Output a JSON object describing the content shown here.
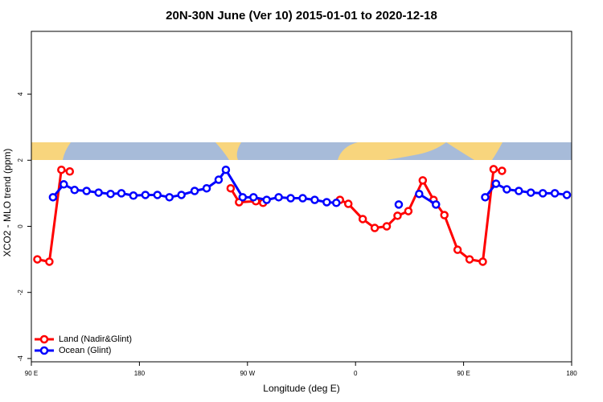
{
  "chart_data": {
    "type": "line",
    "title": "20N-30N June (Ver 10)   2015-01-01 to 2020-12-18",
    "x_label": "Longitude (deg E)",
    "y_label": "XCO2 - MLO trend (ppm)",
    "xlim": [
      90,
      540
    ],
    "ylim": [
      -4.1,
      5.9
    ],
    "xticks": [
      {
        "value": 90,
        "label": "90 E"
      },
      180,
      {
        "value": 270,
        "label": "90 W"
      },
      {
        "value": 360,
        "label": "0"
      },
      {
        "value": 450,
        "label": "90 E"
      },
      {
        "value": 540,
        "label": "180"
      }
    ],
    "yticks": [
      -4,
      -2,
      0,
      2,
      4
    ],
    "grid": false,
    "legend": "bottom-left",
    "series": [
      {
        "name": "Land (Nadir&Glint)",
        "color": "#ff0000",
        "x": [
          95,
          105,
          115,
          122,
          null,
          256,
          263,
          277,
          283,
          null,
          347,
          354,
          366,
          376,
          386,
          395,
          404,
          416,
          425,
          434,
          445,
          455,
          466,
          475,
          482
        ],
        "values": [
          -1.0,
          -1.07,
          1.71,
          1.66,
          null,
          1.15,
          0.73,
          0.76,
          0.71,
          null,
          0.8,
          0.68,
          0.22,
          -0.05,
          0.0,
          0.32,
          0.46,
          1.39,
          0.8,
          0.34,
          -0.71,
          -1.0,
          -1.07,
          1.73,
          1.68
        ]
      },
      {
        "name": "Ocean (Glint)",
        "color": "#0000ff",
        "x": [
          108,
          117,
          126,
          136,
          146,
          156,
          165,
          175,
          185,
          195,
          205,
          215,
          226,
          236,
          246,
          252,
          266,
          275,
          286,
          296,
          306,
          316,
          326,
          336,
          344,
          null,
          396,
          null,
          413,
          427,
          null,
          468,
          477,
          486,
          496,
          506,
          516,
          526,
          536
        ],
        "values": [
          0.88,
          1.27,
          1.1,
          1.07,
          1.02,
          0.98,
          1.0,
          0.93,
          0.95,
          0.95,
          0.88,
          0.95,
          1.07,
          1.15,
          1.41,
          1.71,
          0.88,
          0.88,
          0.8,
          0.88,
          0.85,
          0.85,
          0.8,
          0.73,
          0.71,
          null,
          0.66,
          null,
          0.98,
          0.66,
          null,
          0.88,
          1.29,
          1.12,
          1.07,
          1.02,
          1.0,
          1.0,
          0.95
        ]
      }
    ]
  }
}
